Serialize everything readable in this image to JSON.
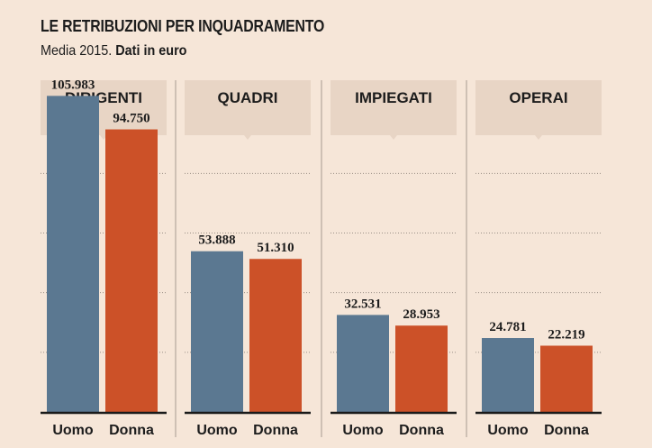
{
  "header": {
    "title": "LE RETRIBUZIONI PER INQUADRAMENTO",
    "subtitle_plain": "Media 2015.",
    "subtitle_bold": "Dati in euro"
  },
  "colors": {
    "background": "#f6e6d8",
    "header_box": "#e8d5c5",
    "uomo": "#5b7891",
    "donna": "#cc5128",
    "axis": "#1a1a1a",
    "grid": "#9a8f86",
    "separator": "#b3a79d"
  },
  "chart_data": {
    "type": "bar",
    "title": "LE RETRIBUZIONI PER INQUADRAMENTO",
    "subtitle": "Media 2015. Dati in euro",
    "ylim": [
      0,
      120000
    ],
    "grid": true,
    "categories": [
      "Uomo",
      "Donna"
    ],
    "panels": [
      {
        "name": "DIRIGENTI",
        "values": [
          105983,
          94750
        ],
        "labels": [
          "105.983",
          "94.750"
        ]
      },
      {
        "name": "QUADRI",
        "values": [
          53888,
          51310
        ],
        "labels": [
          "53.888",
          "51.310"
        ]
      },
      {
        "name": "IMPIEGATI",
        "values": [
          32531,
          28953
        ],
        "labels": [
          "32.531",
          "28.953"
        ]
      },
      {
        "name": "OPERAI",
        "values": [
          24781,
          22219
        ],
        "labels": [
          "24.781",
          "22.219"
        ]
      }
    ]
  }
}
